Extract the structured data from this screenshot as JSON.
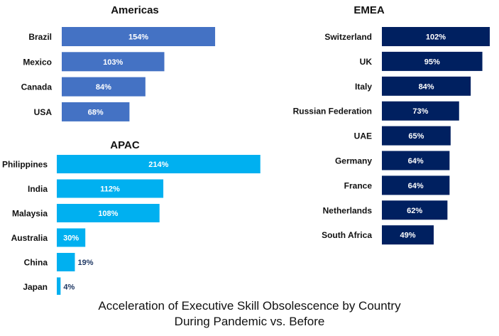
{
  "caption": {
    "line1": "Acceleration of Executive Skill Obsolescence by Country",
    "line2": "During Pandemic vs. Before"
  },
  "colors": {
    "americas": "#4472c4",
    "apac": "#00b0f0",
    "emea": "#002060",
    "label_inside": "#ffffff",
    "label_outside": "#1f3864",
    "text": "#111111"
  },
  "chart_data": [
    {
      "type": "bar",
      "orientation": "horizontal",
      "title": "Americas",
      "categories": [
        "Brazil",
        "Mexico",
        "Canada",
        "USA"
      ],
      "values": [
        154,
        103,
        84,
        68
      ],
      "data_labels": [
        "154%",
        "103%",
        "84%",
        "68%"
      ],
      "unit": "%"
    },
    {
      "type": "bar",
      "orientation": "horizontal",
      "title": "APAC",
      "categories": [
        "Philippines",
        "India",
        "Malaysia",
        "Australia",
        "China",
        "Japan"
      ],
      "values": [
        214,
        112,
        108,
        30,
        19,
        4
      ],
      "data_labels": [
        "214%",
        "112%",
        "108%",
        "30%",
        "19%",
        "4%"
      ],
      "unit": "%"
    },
    {
      "type": "bar",
      "orientation": "horizontal",
      "title": "EMEA",
      "categories": [
        "Switzerland",
        "UK",
        "Italy",
        "Russian Federation",
        "UAE",
        "Germany",
        "France",
        "Netherlands",
        "South Africa"
      ],
      "values": [
        102,
        95,
        84,
        73,
        65,
        64,
        64,
        62,
        49
      ],
      "data_labels": [
        "102%",
        "95%",
        "84%",
        "73%",
        "65%",
        "64%",
        "64%",
        "62%",
        "49%"
      ],
      "unit": "%"
    }
  ]
}
